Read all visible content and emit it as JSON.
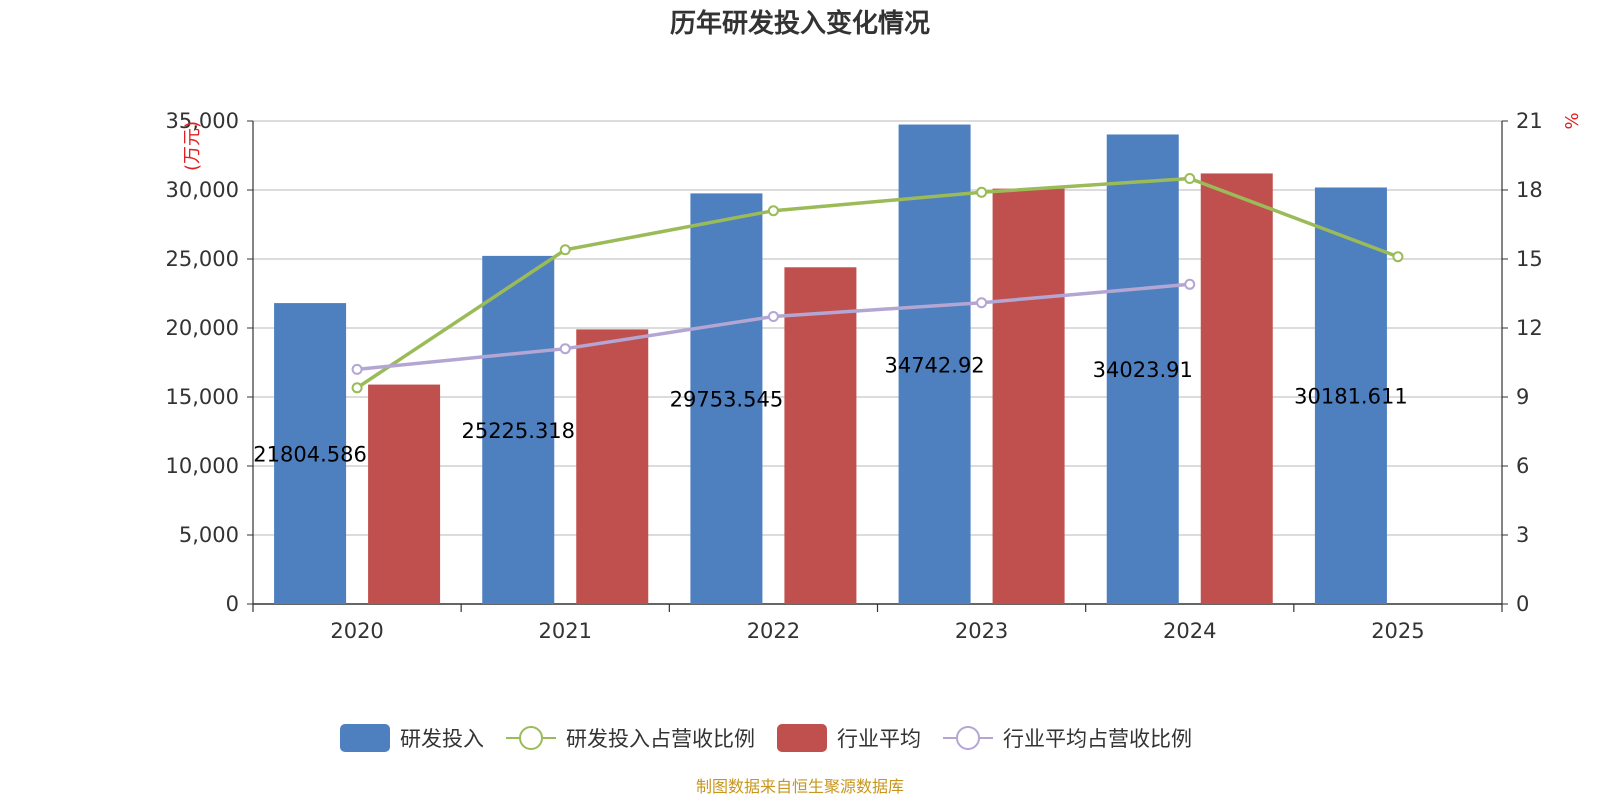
{
  "chart_data": {
    "type": "bar",
    "title": "历年研发投入变化情况",
    "categories": [
      "2020",
      "2021",
      "2022",
      "2023",
      "2024",
      "2025"
    ],
    "y_left": {
      "unit": "万元",
      "min": 0,
      "max": 35000,
      "ticks": [
        "0",
        "5,000",
        "10,000",
        "15,000",
        "20,000",
        "25,000",
        "30,000",
        "35,000"
      ]
    },
    "y_right": {
      "unit": "%",
      "min": 0,
      "max": 21,
      "ticks": [
        "0",
        "3",
        "6",
        "9",
        "12",
        "15",
        "18",
        "21"
      ]
    },
    "series": [
      {
        "name": "研发投入",
        "kind": "bar",
        "axis": "left",
        "color": "#4e7fbf",
        "values": [
          21804.586,
          25225.318,
          29753.545,
          34742.92,
          34023.91,
          30181.611
        ],
        "labels": [
          "21804.586",
          "25225.318",
          "29753.545",
          "34742.92",
          "34023.91",
          "30181.611"
        ]
      },
      {
        "name": "研发投入占营收比例",
        "kind": "line",
        "axis": "right",
        "color": "#9bbb59",
        "values": [
          9.4,
          15.4,
          17.1,
          17.9,
          18.5,
          15.1
        ]
      },
      {
        "name": "行业平均",
        "kind": "bar",
        "axis": "left",
        "color": "#c0504d",
        "values": [
          15900,
          19900,
          24400,
          30100,
          31200,
          null
        ]
      },
      {
        "name": "行业平均占营收比例",
        "kind": "line",
        "axis": "right",
        "color": "#b3a6d3",
        "values": [
          10.2,
          11.1,
          12.5,
          13.1,
          13.9,
          null
        ]
      }
    ],
    "grid": true,
    "legend_position": "bottom"
  },
  "footer": {
    "source": "制图数据来自恒生聚源数据库"
  }
}
